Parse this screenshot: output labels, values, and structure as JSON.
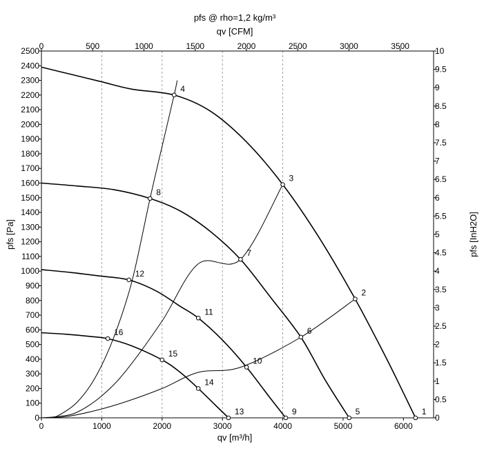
{
  "chart_data": {
    "type": "line",
    "title": "pfs @ rho=1,2 kg/m³",
    "xlabel": "qv [m³/h]",
    "x2label": "qv [CFM]",
    "ylabel": "pfs [Pa]",
    "y2label": "pfs [InH2O]",
    "xlim": [
      0,
      6500
    ],
    "ylim": [
      0,
      2500
    ],
    "x_ticks": [
      "0",
      "1000",
      "2000",
      "3000",
      "4000",
      "5000",
      "6000"
    ],
    "x2_ticks": [
      "0",
      "500",
      "1000",
      "1500",
      "2000",
      "2500",
      "3000",
      "3500"
    ],
    "y_ticks": [
      "0",
      "100",
      "200",
      "300",
      "400",
      "500",
      "600",
      "700",
      "800",
      "900",
      "1000",
      "1100",
      "1200",
      "1300",
      "1400",
      "1500",
      "1600",
      "1700",
      "1800",
      "1900",
      "2000",
      "2100",
      "2200",
      "2300",
      "2400",
      "2500"
    ],
    "y2_ticks": [
      "0",
      "0.5",
      "1",
      "1.5",
      "2",
      "2.5",
      "3",
      "3.5",
      "4",
      "4.5",
      "5",
      "5.5",
      "6",
      "6.5",
      "7",
      "7.5",
      "8",
      "8.5",
      "9",
      "9.5",
      "10"
    ],
    "grid": "vertical dashed at 1000, 2000, 3000, 4000",
    "fan_curves": [
      {
        "x": [
          0,
          500,
          1000,
          1500,
          2200,
          2800,
          3400,
          4000,
          4600,
          5200,
          5700,
          6000,
          6200
        ],
        "y": [
          2390,
          2340,
          2290,
          2240,
          2200,
          2090,
          1880,
          1590,
          1230,
          810,
          420,
          170,
          0
        ]
      },
      {
        "x": [
          0,
          600,
          1200,
          1800,
          2300,
          2800,
          3300,
          3800,
          4300,
          4700,
          5100
        ],
        "y": [
          1600,
          1580,
          1555,
          1495,
          1410,
          1270,
          1080,
          820,
          550,
          260,
          0
        ]
      },
      {
        "x": [
          0,
          500,
          1000,
          1450,
          1900,
          2300,
          2600,
          3000,
          3400,
          3800,
          4050
        ],
        "y": [
          1010,
          990,
          965,
          940,
          865,
          760,
          680,
          530,
          345,
          130,
          0
        ]
      },
      {
        "x": [
          0,
          400,
          800,
          1100,
          1500,
          2000,
          2300,
          2600,
          2900,
          3100
        ],
        "y": [
          580,
          570,
          555,
          540,
          490,
          395,
          310,
          200,
          80,
          0
        ]
      }
    ],
    "system_curves": [
      {
        "x": [
          0,
          150,
          300,
          600,
          900,
          1200,
          1500,
          1800,
          2000,
          2200,
          2250
        ],
        "y": [
          0,
          2,
          20,
          110,
          280,
          550,
          930,
          1495,
          1850,
          2200,
          2300
        ]
      },
      {
        "x": [
          0,
          300,
          600,
          1000,
          1400,
          2000,
          2600,
          3300,
          4000
        ],
        "y": [
          0,
          10,
          40,
          150,
          320,
          660,
          1050,
          1080,
          1590
        ]
      },
      {
        "x": [
          0,
          400,
          900,
          1400,
          2000,
          2600,
          3300,
          4300,
          5200
        ],
        "y": [
          0,
          8,
          50,
          110,
          200,
          310,
          345,
          550,
          810
        ]
      }
    ],
    "points": [
      {
        "label": "1",
        "x": 6200,
        "y": 0
      },
      {
        "label": "2",
        "x": 5200,
        "y": 810
      },
      {
        "label": "3",
        "x": 4000,
        "y": 1590
      },
      {
        "label": "4",
        "x": 2200,
        "y": 2200
      },
      {
        "label": "5",
        "x": 5100,
        "y": 0
      },
      {
        "label": "6",
        "x": 4300,
        "y": 550
      },
      {
        "label": "7",
        "x": 3300,
        "y": 1080
      },
      {
        "label": "8",
        "x": 1800,
        "y": 1495
      },
      {
        "label": "9",
        "x": 4050,
        "y": 0
      },
      {
        "label": "10",
        "x": 3400,
        "y": 345
      },
      {
        "label": "11",
        "x": 2600,
        "y": 680
      },
      {
        "label": "12",
        "x": 1450,
        "y": 940
      },
      {
        "label": "13",
        "x": 3100,
        "y": 0
      },
      {
        "label": "14",
        "x": 2600,
        "y": 200
      },
      {
        "label": "15",
        "x": 2000,
        "y": 395
      },
      {
        "label": "16",
        "x": 1100,
        "y": 540
      }
    ]
  }
}
